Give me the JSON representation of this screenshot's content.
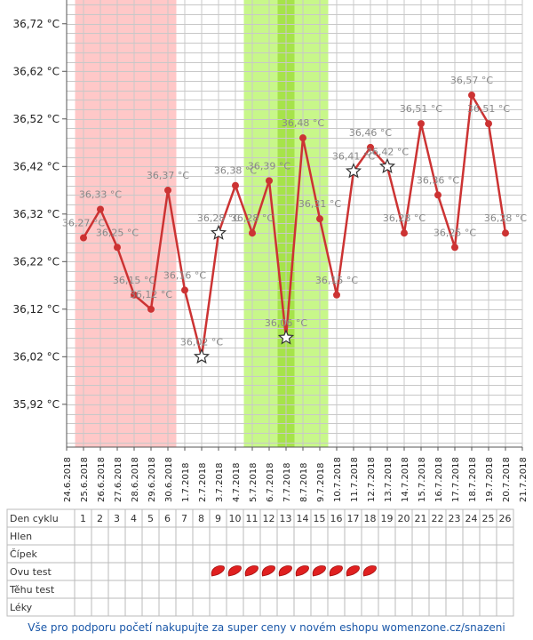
{
  "chart_data": {
    "type": "line",
    "y_ticks": [
      "36,72 °C",
      "36,62 °C",
      "36,52 °C",
      "36,42 °C",
      "36,32 °C",
      "36,22 °C",
      "36,12 °C",
      "36,02 °C",
      "35,92 °C"
    ],
    "y_tick_values": [
      36.72,
      36.62,
      36.52,
      36.42,
      36.32,
      36.22,
      36.12,
      36.02,
      35.92
    ],
    "ylim": [
      35.83,
      36.77
    ],
    "x_dates": [
      "24.6.2018",
      "25.6.2018",
      "26.6.2018",
      "27.6.2018",
      "28.6.2018",
      "29.6.2018",
      "30.6.2018",
      "1.7.2018",
      "2.7.2018",
      "3.7.2018",
      "4.7.2018",
      "5.7.2018",
      "6.7.2018",
      "7.7.2018",
      "8.7.2018",
      "9.7.2018",
      "10.7.2018",
      "11.7.2018",
      "12.7.2018",
      "13.7.2018",
      "14.7.2018",
      "15.7.2018",
      "16.7.2018",
      "17.7.2018",
      "18.7.2018",
      "19.7.2018",
      "20.7.2018",
      "21.7.2018"
    ],
    "grid": true,
    "series": [
      {
        "color": "#cc3333",
        "points": [
          {
            "day": 1,
            "value": 36.27,
            "label": "36,27 °C",
            "marker": "dot"
          },
          {
            "day": 2,
            "value": 36.33,
            "label": "36,33 °C",
            "marker": "dot"
          },
          {
            "day": 3,
            "value": 36.25,
            "label": "36,25 °C",
            "marker": "dot"
          },
          {
            "day": 4,
            "value": 36.15,
            "label": "36,15 °C",
            "marker": "dot"
          },
          {
            "day": 5,
            "value": 36.12,
            "label": "36,12 °C",
            "marker": "dot"
          },
          {
            "day": 6,
            "value": 36.37,
            "label": "36,37 °C",
            "marker": "dot"
          },
          {
            "day": 7,
            "value": 36.16,
            "label": "36,16 °C",
            "marker": "dot"
          },
          {
            "day": 8,
            "value": 36.02,
            "label": "36,02 °C",
            "marker": "star"
          },
          {
            "day": 9,
            "value": 36.28,
            "label": "36,28 °C",
            "marker": "star"
          },
          {
            "day": 10,
            "value": 36.38,
            "label": "36,38 °C",
            "marker": "dot"
          },
          {
            "day": 11,
            "value": 36.28,
            "label": "36,28 °C",
            "marker": "dot"
          },
          {
            "day": 12,
            "value": 36.39,
            "label": "36,39 °C",
            "marker": "dot"
          },
          {
            "day": 13,
            "value": 36.06,
            "label": "36,06 °C",
            "marker": "star"
          },
          {
            "day": 14,
            "value": 36.48,
            "label": "36,48 °C",
            "marker": "dot"
          },
          {
            "day": 15,
            "value": 36.31,
            "label": "36,31 °C",
            "marker": "dot"
          },
          {
            "day": 16,
            "value": 36.15,
            "label": "36,15 °C",
            "marker": "dot"
          },
          {
            "day": 17,
            "value": 36.41,
            "label": "36,41 °C",
            "marker": "star"
          },
          {
            "day": 18,
            "value": 36.46,
            "label": "36,46 °C",
            "marker": "dot"
          },
          {
            "day": 19,
            "value": 36.42,
            "label": "36,42 °C",
            "marker": "star"
          },
          {
            "day": 20,
            "value": 36.28,
            "label": "36,28 °C",
            "marker": "dot"
          },
          {
            "day": 21,
            "value": 36.51,
            "label": "36,51 °C",
            "marker": "dot"
          },
          {
            "day": 22,
            "value": 36.36,
            "label": "36,36 °C",
            "marker": "dot"
          },
          {
            "day": 23,
            "value": 36.25,
            "label": "36,25 °C",
            "marker": "dot"
          },
          {
            "day": 24,
            "value": 36.57,
            "label": "36,57 °C",
            "marker": "dot"
          },
          {
            "day": 25,
            "value": 36.51,
            "label": "36,51 °C",
            "marker": "dot"
          },
          {
            "day": 26,
            "value": 36.28,
            "label": "36,28 °C",
            "marker": "dot"
          }
        ]
      }
    ],
    "bands": [
      {
        "from_day": 0.5,
        "to_day": 6.5,
        "color": "#ffc8c8"
      },
      {
        "from_day": 10.5,
        "to_day": 15.5,
        "color": "#c8f78a"
      },
      {
        "from_day": 12.5,
        "to_day": 13.5,
        "color": "#a6e34a"
      }
    ]
  },
  "cycle_table": {
    "rows": [
      "Den cyklu",
      "Hlen",
      "Čípek",
      "Ovu test",
      "Těhu test",
      "Léky"
    ],
    "days": [
      "1",
      "2",
      "3",
      "4",
      "5",
      "6",
      "7",
      "8",
      "9",
      "10",
      "11",
      "12",
      "13",
      "14",
      "15",
      "16",
      "17",
      "18",
      "19",
      "20",
      "21",
      "22",
      "23",
      "24",
      "25",
      "26"
    ],
    "ovu_test_days": [
      9,
      10,
      11,
      12,
      13,
      14,
      15,
      16,
      17,
      18
    ],
    "ovu_icon": "red-drop-icon",
    "ovu_color": "#e02020"
  },
  "footer": {
    "text": "Vše pro podporu početí nakupujte za super ceny v novém eshopu womenzone.cz/snazeni",
    "color": "#1a57a8"
  }
}
